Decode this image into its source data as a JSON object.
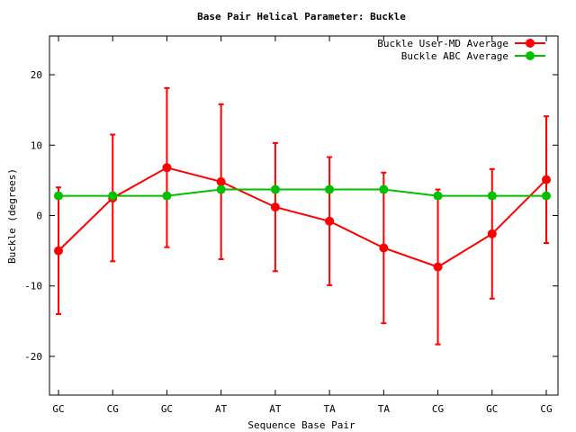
{
  "chart_data": {
    "type": "line",
    "title": "Base Pair Helical Parameter: Buckle",
    "xlabel": "Sequence Base Pair",
    "ylabel": "Buckle (degrees)",
    "categories": [
      "GC",
      "CG",
      "GC",
      "AT",
      "AT",
      "TA",
      "TA",
      "CG",
      "GC",
      "CG"
    ],
    "ylim": [
      -25.5,
      25.5
    ],
    "yticks": [
      -20,
      -10,
      0,
      10,
      20
    ],
    "grid": false,
    "legend_position": "top-right",
    "series": [
      {
        "name": "Buckle User-MD Average",
        "color": "#ff0000",
        "values": [
          -5.0,
          2.5,
          6.8,
          4.8,
          1.2,
          -0.8,
          -4.6,
          -7.3,
          -2.6,
          5.1
        ],
        "error": [
          9.0,
          9.0,
          11.3,
          11.0,
          9.1,
          9.1,
          10.7,
          11.0,
          9.2,
          9.0
        ]
      },
      {
        "name": "Buckle ABC Average",
        "color": "#00c000",
        "values": [
          2.8,
          2.8,
          2.8,
          3.7,
          3.7,
          3.7,
          3.7,
          2.8,
          2.8,
          2.8
        ]
      }
    ]
  }
}
